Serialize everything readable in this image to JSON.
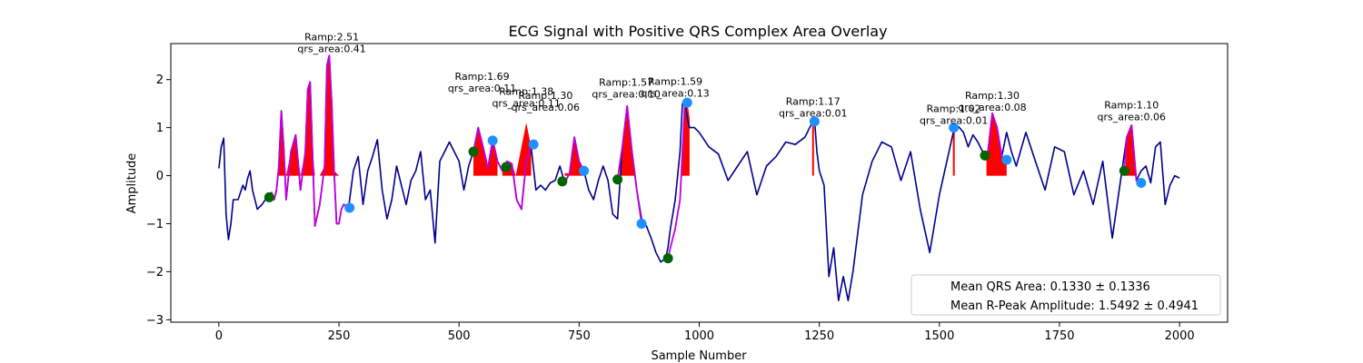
{
  "chart_data": {
    "type": "line",
    "title": "ECG Signal with Positive QRS Complex Area Overlay",
    "xlabel": "Sample Number",
    "ylabel": "Amplitude",
    "xlim": [
      -100,
      2100
    ],
    "ylim": [
      -3.05,
      2.75
    ],
    "xticks": [
      0,
      250,
      500,
      750,
      1000,
      1250,
      1500,
      1750,
      2000
    ],
    "xtick_labels": [
      "0",
      "250",
      "500",
      "750",
      "1000",
      "1250",
      "1500",
      "1750",
      "2000"
    ],
    "yticks": [
      -3,
      -2,
      -1,
      0,
      1,
      2
    ],
    "ytick_labels": [
      "−3",
      "−2",
      "−1",
      "0",
      "1",
      "2"
    ],
    "grid": false,
    "colors": {
      "signal": "#00008b",
      "qrs_segment": "#c000e0",
      "area_fill": "#ff0000",
      "onset_marker": "#006400",
      "offset_marker": "#1e90ff"
    },
    "series": [
      {
        "x": [
          0,
          5,
          10,
          15,
          20,
          25,
          30,
          40,
          50,
          55,
          60,
          65,
          70,
          80,
          90,
          100,
          105,
          110,
          115,
          120,
          125,
          130,
          135,
          140,
          150,
          160,
          170,
          180,
          185,
          190,
          195,
          200,
          210,
          220,
          225,
          230,
          235,
          240,
          245,
          250,
          255,
          260,
          270,
          280,
          290,
          300,
          310,
          320,
          330,
          340,
          350,
          360,
          370,
          380,
          390,
          400,
          410,
          420,
          430,
          440,
          450,
          460,
          470,
          480,
          490,
          500,
          510,
          520,
          530,
          540,
          550,
          560,
          570,
          580,
          590,
          600,
          610,
          620,
          630,
          640,
          650,
          660,
          670,
          680,
          690,
          700,
          710,
          720,
          730,
          740,
          750,
          760,
          770,
          780,
          790,
          800,
          810,
          820,
          830,
          840,
          850,
          860,
          870,
          880,
          890,
          900,
          910,
          920,
          930,
          935,
          940,
          950,
          960,
          965,
          970,
          975,
          980,
          990,
          1000,
          1020,
          1040,
          1060,
          1080,
          1100,
          1120,
          1140,
          1160,
          1180,
          1200,
          1220,
          1235,
          1240,
          1245,
          1250,
          1260,
          1270,
          1280,
          1290,
          1300,
          1310,
          1320,
          1340,
          1360,
          1380,
          1400,
          1420,
          1440,
          1460,
          1480,
          1500,
          1520,
          1530,
          1540,
          1550,
          1560,
          1570,
          1580,
          1590,
          1600,
          1610,
          1620,
          1630,
          1640,
          1650,
          1660,
          1680,
          1700,
          1720,
          1740,
          1760,
          1780,
          1800,
          1820,
          1840,
          1860,
          1880,
          1890,
          1900,
          1905,
          1910,
          1920,
          1930,
          1940,
          1950,
          1960,
          1970,
          1980,
          1990,
          2000
        ],
        "y": [
          0.15,
          0.6,
          0.78,
          -0.8,
          -1.33,
          -1.0,
          -0.5,
          -0.5,
          -0.2,
          -0.3,
          -0.05,
          0.1,
          -0.3,
          -0.7,
          -0.6,
          -0.45,
          -0.45,
          -0.35,
          -0.5,
          -0.3,
          0.2,
          1.35,
          0.6,
          -0.5,
          0.5,
          0.85,
          -0.3,
          0.5,
          1.8,
          1.95,
          0.5,
          -1.05,
          -0.6,
          0.2,
          2.3,
          2.5,
          1.5,
          0.1,
          -1.0,
          -1.0,
          -0.7,
          -0.6,
          -0.67,
          0.1,
          0.4,
          -0.6,
          0.1,
          0.4,
          0.75,
          -0.3,
          -0.9,
          -0.5,
          0.2,
          -0.2,
          -0.6,
          -0.1,
          0.1,
          0.5,
          -0.5,
          -0.3,
          -1.4,
          0.3,
          0.5,
          0.7,
          0.5,
          0.3,
          -0.3,
          0.2,
          0.5,
          1.0,
          0.6,
          0.15,
          0.75,
          0.3,
          0.1,
          0.3,
          0.25,
          -0.5,
          -0.7,
          0.3,
          0.6,
          -0.3,
          -0.2,
          -0.3,
          -0.15,
          -0.1,
          0.2,
          -0.15,
          0.05,
          0.8,
          0.3,
          0.1,
          -0.3,
          -0.5,
          -0.1,
          0.2,
          -0.1,
          -0.8,
          -0.9,
          0.6,
          1.45,
          0.5,
          -0.3,
          -0.9,
          -1.05,
          -1.3,
          -1.6,
          -1.8,
          -1.72,
          -1.5,
          -1.1,
          -0.5,
          0.5,
          1.5,
          1.55,
          1.2,
          1.0,
          1.0,
          0.9,
          0.6,
          0.45,
          -0.1,
          0.2,
          0.5,
          -0.4,
          0.2,
          0.4,
          0.7,
          0.65,
          0.8,
          1.1,
          1.17,
          0.5,
          0.1,
          -0.2,
          -2.1,
          -1.5,
          -2.6,
          -2.1,
          -2.6,
          -2.0,
          -0.4,
          0.3,
          0.7,
          0.6,
          -0.1,
          0.5,
          -0.7,
          -1.6,
          -0.4,
          0.5,
          0.95,
          1.02,
          0.9,
          0.6,
          0.85,
          0.7,
          0.5,
          0.4,
          1.3,
          1.0,
          0.4,
          0.9,
          0.5,
          0.2,
          0.9,
          0.3,
          -0.3,
          0.6,
          0.5,
          -0.4,
          0.1,
          -0.6,
          0.3,
          -1.3,
          0.1,
          0.8,
          1.05,
          0.5,
          -0.1,
          0.1,
          0.2,
          -0.15,
          0.6,
          0.7,
          -0.6,
          -0.2,
          0.0,
          -0.05
        ]
      },
      {
        "segments": [
          {
            "x": [
              105,
              110,
              115,
              120,
              125,
              130,
              135,
              140,
              150,
              160,
              170,
              180,
              185,
              190,
              195,
              200,
              210,
              220,
              225,
              230,
              235,
              240,
              245,
              250,
              255,
              260,
              270
            ],
            "y": [
              -0.45,
              -0.35,
              -0.5,
              -0.3,
              0.2,
              1.35,
              0.6,
              -0.5,
              0.5,
              0.85,
              -0.3,
              0.5,
              1.8,
              1.95,
              0.5,
              -1.05,
              -0.6,
              0.2,
              2.3,
              2.5,
              1.5,
              0.1,
              -1.0,
              -1.0,
              -0.7,
              -0.6,
              -0.67
            ]
          },
          {
            "x": [
              530,
              540,
              550,
              560,
              570,
              580,
              590,
              600,
              610,
              620,
              630,
              640,
              650,
              655
            ],
            "y": [
              0.5,
              1.0,
              0.6,
              0.15,
              0.75,
              0.3,
              0.1,
              0.3,
              0.25,
              -0.5,
              -0.7,
              0.3,
              0.6,
              0.65
            ]
          },
          {
            "x": [
              715,
              720,
              730,
              740,
              750,
              760
            ],
            "y": [
              -0.12,
              -0.15,
              0.05,
              0.8,
              0.3,
              0.1
            ]
          },
          {
            "x": [
              830,
              840,
              850,
              860,
              870,
              880
            ],
            "y": [
              -0.08,
              0.6,
              1.45,
              0.5,
              -0.3,
              -1.0
            ]
          },
          {
            "x": [
              935,
              940,
              950,
              960,
              965,
              970,
              975
            ],
            "y": [
              -1.72,
              -1.5,
              -1.1,
              -0.5,
              0.5,
              1.5,
              1.55
            ]
          },
          {
            "x": [
              1595,
              1600,
              1610,
              1620,
              1630,
              1640
            ],
            "y": [
              0.42,
              0.4,
              1.3,
              1.0,
              0.4,
              0.35
            ]
          },
          {
            "x": [
              1885,
              1890,
              1900,
              1905,
              1910,
              1920
            ],
            "y": [
              0.1,
              0.8,
              1.05,
              0.5,
              -0.1,
              -0.15
            ]
          }
        ]
      }
    ],
    "filled_areas": [
      {
        "x": [
          125,
          130,
          135,
          140,
          150,
          160,
          170,
          180,
          185,
          190,
          195,
          200,
          210,
          220,
          225,
          230,
          235,
          240,
          250
        ],
        "y": [
          0,
          1.35,
          0.6,
          0,
          0.5,
          0.85,
          0,
          0.5,
          1.8,
          1.95,
          0.5,
          0,
          0,
          0.2,
          2.3,
          2.5,
          1.5,
          0.1,
          0
        ]
      },
      {
        "x": [
          530,
          540,
          550,
          560,
          570,
          580
        ],
        "y": [
          0.5,
          1.0,
          0.6,
          0.15,
          0.75,
          0.3
        ]
      },
      {
        "x": [
          590,
          600,
          610,
          618,
          630,
          640,
          650
        ],
        "y": [
          0.1,
          0.3,
          0.25,
          0,
          0.6,
          1.1,
          0.6
        ]
      },
      {
        "x": [
          720,
          730,
          740,
          750,
          760
        ],
        "y": [
          0.05,
          0.05,
          0.8,
          0.3,
          0.1
        ]
      },
      {
        "x": [
          835,
          840,
          850,
          860,
          866
        ],
        "y": [
          0.3,
          0.6,
          1.45,
          0.5,
          0
        ]
      },
      {
        "x": [
          962,
          965,
          970,
          975,
          980
        ],
        "y": [
          0.2,
          0.5,
          1.5,
          1.55,
          1.2
        ]
      },
      {
        "x": [
          1598,
          1600,
          1610,
          1620,
          1630,
          1640
        ],
        "y": [
          0.4,
          0.4,
          1.3,
          1.0,
          0.4,
          0.3
        ]
      },
      {
        "x": [
          1888,
          1890,
          1900,
          1905,
          1910
        ],
        "y": [
          0.2,
          0.8,
          1.05,
          0.5,
          0.1
        ]
      }
    ],
    "spike_lines": [
      {
        "x": 1237,
        "y": 1.17
      },
      {
        "x": 1530,
        "y": 1.02
      }
    ],
    "onset_points": [
      {
        "x": 105,
        "y": -0.45
      },
      {
        "x": 530,
        "y": 0.5
      },
      {
        "x": 598,
        "y": 0.18
      },
      {
        "x": 715,
        "y": -0.12
      },
      {
        "x": 830,
        "y": -0.08
      },
      {
        "x": 935,
        "y": -1.72
      },
      {
        "x": 1595,
        "y": 0.42
      },
      {
        "x": 1885,
        "y": 0.1
      }
    ],
    "offset_points": [
      {
        "x": 272,
        "y": -0.67
      },
      {
        "x": 570,
        "y": 0.73
      },
      {
        "x": 655,
        "y": 0.65
      },
      {
        "x": 760,
        "y": 0.1
      },
      {
        "x": 880,
        "y": -1.0
      },
      {
        "x": 975,
        "y": 1.52
      },
      {
        "x": 1240,
        "y": 1.13
      },
      {
        "x": 1530,
        "y": 1.0
      },
      {
        "x": 1640,
        "y": 0.33
      },
      {
        "x": 1920,
        "y": -0.15
      }
    ],
    "annotations": [
      {
        "x": 235,
        "y": 2.51,
        "ramp": "Ramp:2.51",
        "area": "qrs_area:0.41"
      },
      {
        "x": 548,
        "y": 1.69,
        "ramp": "Ramp:1.69",
        "area": "qrs_area:0.11"
      },
      {
        "x": 640,
        "y": 1.38,
        "ramp": "Ramp:1.38",
        "area": "qrs_area:0.11"
      },
      {
        "x": 680,
        "y": 1.3,
        "ramp": "Ramp:1.30",
        "area": "qrs_area:0.06"
      },
      {
        "x": 848,
        "y": 1.57,
        "ramp": "Ramp:1.57",
        "area": "qrs_area:0.10"
      },
      {
        "x": 950,
        "y": 1.59,
        "ramp": "Ramp:1.59",
        "area": "qrs_area:0.13"
      },
      {
        "x": 1237,
        "y": 1.17,
        "ramp": "Ramp:1.17",
        "area": "qrs_area:0.01"
      },
      {
        "x": 1530,
        "y": 1.02,
        "ramp": "Ramp:1.02",
        "area": "qrs_area:0.01"
      },
      {
        "x": 1610,
        "y": 1.3,
        "ramp": "Ramp:1.30",
        "area": "qrs_area:0.08"
      },
      {
        "x": 1900,
        "y": 1.1,
        "ramp": "Ramp:1.10",
        "area": "qrs_area:0.06"
      }
    ],
    "legend": {
      "placement": "lower-right",
      "entries": [
        "Mean QRS Area: 0.1330 ± 0.1336",
        "Mean R-Peak Amplitude: 1.5492 ± 0.4941"
      ]
    }
  }
}
